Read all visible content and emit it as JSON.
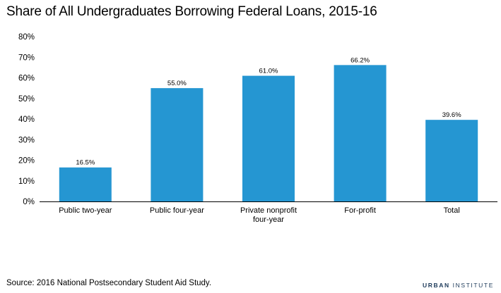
{
  "title": "Share of All Undergraduates Borrowing Federal Loans, 2015-16",
  "source": "Source: 2016 National Postsecondary Student Aid Study.",
  "brand": {
    "bold": "URBAN",
    "rest": "INSTITUTE"
  },
  "colors": {
    "bar": "#2596d2",
    "axis": "#000000",
    "text": "#000000"
  },
  "chart_data": {
    "type": "bar",
    "categories": [
      [
        "Public two-year"
      ],
      [
        "Public four-year"
      ],
      [
        "Private nonprofit",
        "four-year"
      ],
      [
        "For-profit"
      ],
      [
        "Total"
      ]
    ],
    "values": [
      16.5,
      55.0,
      61.0,
      66.2,
      39.6
    ],
    "value_labels": [
      "16.5%",
      "55.0%",
      "61.0%",
      "66.2%",
      "39.6%"
    ],
    "yticks": [
      "0%",
      "10%",
      "20%",
      "30%",
      "40%",
      "50%",
      "60%",
      "70%",
      "80%"
    ],
    "ylim": [
      0,
      80
    ],
    "xlabel": "",
    "ylabel": "",
    "grid": false,
    "legend": "none"
  }
}
